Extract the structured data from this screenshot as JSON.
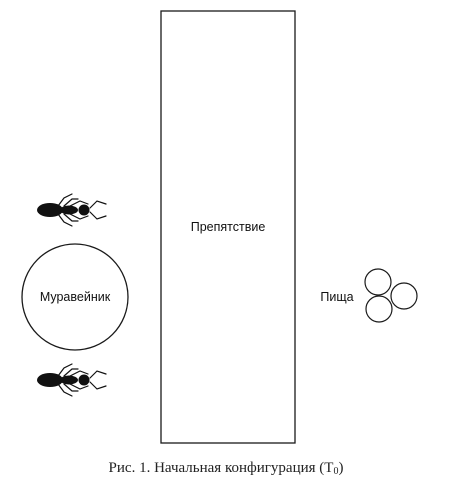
{
  "figure": {
    "obstacle_label": "Препятствие",
    "nest_label": "Муравейник",
    "food_label": "Пища",
    "caption_prefix": "Рис. 1. Начальная конфигурация (T",
    "caption_subscript": "0",
    "caption_suffix": ")"
  },
  "icons": {
    "ant": "ant-icon",
    "food": "food-circles-icon"
  },
  "colors": {
    "line": "#1a1a1a",
    "ant_body": "#111111"
  }
}
